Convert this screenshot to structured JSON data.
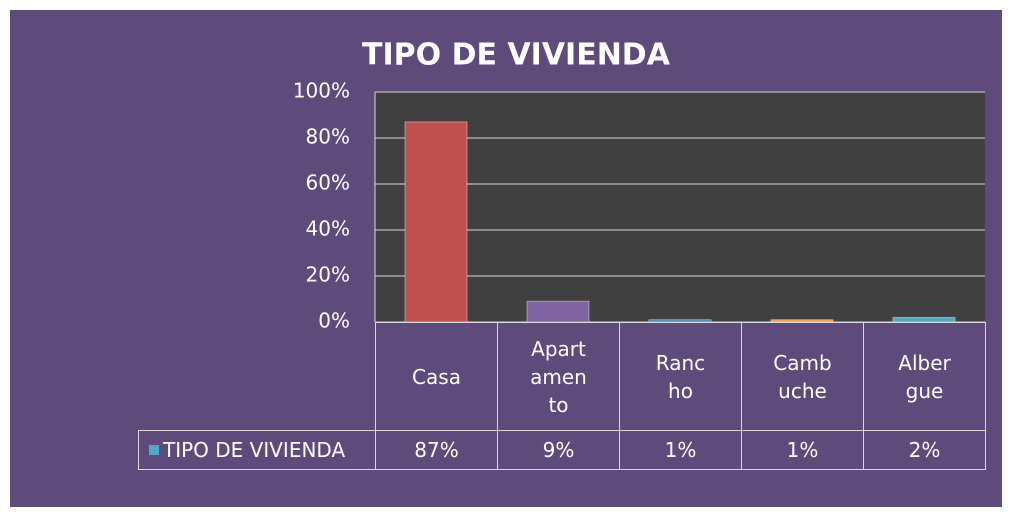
{
  "chart_data": {
    "type": "bar",
    "title": "TIPO DE VIVIENDA",
    "categories": [
      "Casa",
      "Apartamento",
      "Rancho",
      "Cambuche",
      "Albergue"
    ],
    "series": [
      {
        "name": "TIPO DE VIVIENDA",
        "color": "#4bacc6",
        "colors": [
          "#c0504d",
          "#8064a2",
          "#4f81bd",
          "#f79646",
          "#4bacc6"
        ],
        "values": [
          87,
          9,
          1,
          1,
          2
        ],
        "value_labels": [
          "87%",
          "9%",
          "1%",
          "1%",
          "2%"
        ]
      }
    ],
    "ylim": [
      0,
      100
    ],
    "yticks": [
      {
        "value": 0,
        "label": "0%"
      },
      {
        "value": 20,
        "label": "20%"
      },
      {
        "value": 40,
        "label": "40%"
      },
      {
        "value": 60,
        "label": "60%"
      },
      {
        "value": 80,
        "label": "80%"
      },
      {
        "value": 100,
        "label": "100%"
      }
    ],
    "grid": true
  }
}
